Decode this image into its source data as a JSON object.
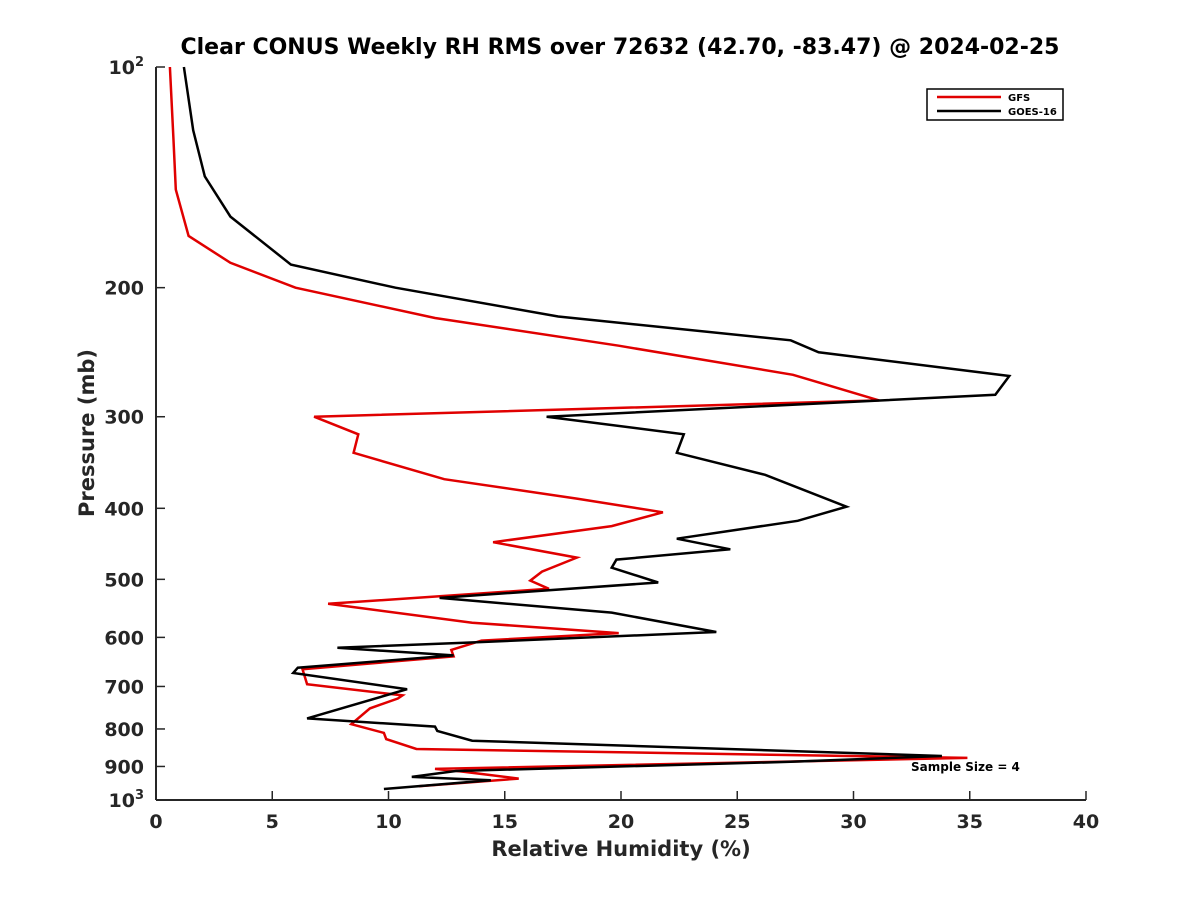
{
  "chart_data": {
    "type": "line",
    "title": "Clear CONUS Weekly RH RMS over 72632 (42.70, -83.47) @ 2024-02-25",
    "xlabel": "Relative Humidity (%)",
    "ylabel": "Pressure (mb)",
    "xlim": [
      0,
      40
    ],
    "ylim": [
      100,
      1000
    ],
    "yscale": "log",
    "y_reversed": true,
    "xticks": [
      0,
      5,
      10,
      15,
      20,
      25,
      30,
      35,
      40
    ],
    "yticks": [
      {
        "value": 100,
        "label": "10",
        "sup": "2"
      },
      {
        "value": 200,
        "label": "200",
        "sup": ""
      },
      {
        "value": 300,
        "label": "300",
        "sup": ""
      },
      {
        "value": 400,
        "label": "400",
        "sup": ""
      },
      {
        "value": 500,
        "label": "500",
        "sup": ""
      },
      {
        "value": 600,
        "label": "600",
        "sup": ""
      },
      {
        "value": 700,
        "label": "700",
        "sup": ""
      },
      {
        "value": 800,
        "label": "800",
        "sup": ""
      },
      {
        "value": 900,
        "label": "900",
        "sup": ""
      },
      {
        "value": 1000,
        "label": "10",
        "sup": "3"
      }
    ],
    "grid": false,
    "legend_position": "top-right",
    "annotation": "Sample Size = 4",
    "series": [
      {
        "name": "GFS",
        "color": "#e00000",
        "points": [
          [
            0.6,
            100
          ],
          [
            0.75,
            125
          ],
          [
            0.85,
            147
          ],
          [
            1.4,
            170
          ],
          [
            3.2,
            185
          ],
          [
            6.0,
            200
          ],
          [
            12.0,
            220
          ],
          [
            19.9,
            240
          ],
          [
            27.4,
            263
          ],
          [
            31.1,
            285
          ],
          [
            6.8,
            300
          ],
          [
            8.7,
            317
          ],
          [
            8.5,
            336
          ],
          [
            12.4,
            365
          ],
          [
            18.1,
            388
          ],
          [
            21.8,
            405
          ],
          [
            19.6,
            423
          ],
          [
            14.5,
            445
          ],
          [
            18.1,
            467
          ],
          [
            16.6,
            488
          ],
          [
            16.1,
            502
          ],
          [
            16.9,
            515
          ],
          [
            7.4,
            540
          ],
          [
            13.6,
            573
          ],
          [
            19.9,
            592
          ],
          [
            14.0,
            606
          ],
          [
            12.7,
            624
          ],
          [
            12.8,
            637
          ],
          [
            6.3,
            663
          ],
          [
            6.5,
            695
          ],
          [
            10.6,
            720
          ],
          [
            10.4,
            727
          ],
          [
            9.2,
            750
          ],
          [
            8.4,
            788
          ],
          [
            9.8,
            810
          ],
          [
            9.9,
            826
          ],
          [
            11.2,
            852
          ],
          [
            34.9,
            876
          ],
          [
            12.0,
            907
          ],
          [
            13.1,
            914
          ],
          [
            15.6,
            935
          ],
          [
            11.3,
            958
          ]
        ]
      },
      {
        "name": "GOES-16",
        "color": "#000000",
        "points": [
          [
            1.2,
            100
          ],
          [
            1.6,
            122
          ],
          [
            2.1,
            141
          ],
          [
            3.2,
            160
          ],
          [
            5.8,
            186
          ],
          [
            10.3,
            200
          ],
          [
            17.3,
            219
          ],
          [
            27.3,
            236
          ],
          [
            28.5,
            245
          ],
          [
            36.7,
            264
          ],
          [
            36.1,
            280
          ],
          [
            16.8,
            300
          ],
          [
            22.7,
            317
          ],
          [
            22.4,
            336
          ],
          [
            26.2,
            360
          ],
          [
            29.7,
            398
          ],
          [
            27.6,
            416
          ],
          [
            22.4,
            440
          ],
          [
            24.7,
            455
          ],
          [
            19.8,
            470
          ],
          [
            19.6,
            482
          ],
          [
            21.6,
            505
          ],
          [
            12.2,
            530
          ],
          [
            19.6,
            555
          ],
          [
            24.1,
            590
          ],
          [
            13.4,
            610
          ],
          [
            7.8,
            620
          ],
          [
            12.8,
            635
          ],
          [
            6.1,
            660
          ],
          [
            5.9,
            671
          ],
          [
            10.8,
            706
          ],
          [
            6.5,
            774
          ],
          [
            12.0,
            794
          ],
          [
            12.1,
            805
          ],
          [
            13.6,
            830
          ],
          [
            33.8,
            871
          ],
          [
            27.3,
            887
          ],
          [
            12.9,
            913
          ],
          [
            11.0,
            930
          ],
          [
            14.4,
            940
          ],
          [
            9.8,
            966
          ]
        ]
      }
    ]
  }
}
